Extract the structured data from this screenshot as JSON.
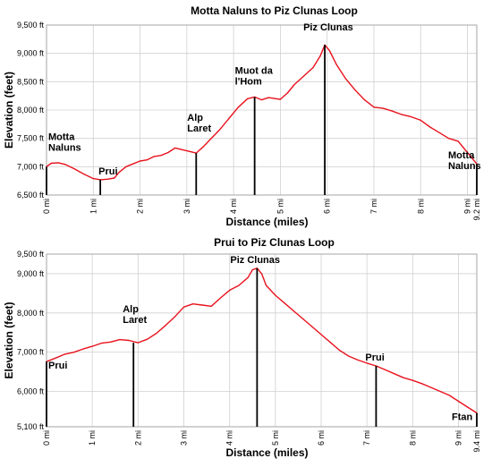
{
  "chart_data": [
    {
      "type": "line",
      "title": "Motta Naluns to Piz Clunas Loop",
      "xlabel": "Distance (miles)",
      "ylabel": "Elevation (feet)",
      "x_unit": "mi",
      "y_unit": "ft",
      "xlim": [
        0,
        9.2
      ],
      "ylim": [
        6500,
        9500
      ],
      "x_ticks": [
        0,
        1,
        2,
        3,
        4,
        5,
        6,
        7,
        8,
        9,
        9.2
      ],
      "y_ticks": [
        6500,
        7000,
        7500,
        8000,
        8500,
        9000,
        9500
      ],
      "grid": true,
      "line_color": "#e8121d",
      "series": [
        {
          "x": [
            0,
            0.1,
            0.25,
            0.4,
            0.6,
            0.8,
            1.0,
            1.15,
            1.3,
            1.45,
            1.55,
            1.7,
            1.85,
            2.0,
            2.15,
            2.3,
            2.45,
            2.6,
            2.75,
            2.9,
            3.05,
            3.2,
            3.35,
            3.5,
            3.7,
            3.9,
            4.1,
            4.3,
            4.45,
            4.6,
            4.75,
            4.9,
            5.0,
            5.15,
            5.3,
            5.5,
            5.7,
            5.85,
            5.95,
            6.05,
            6.2,
            6.4,
            6.6,
            6.8,
            7.0,
            7.2,
            7.4,
            7.6,
            7.8,
            8.0,
            8.2,
            8.4,
            8.6,
            8.8,
            9.0,
            9.2
          ],
          "y": [
            7000,
            7060,
            7070,
            7040,
            6960,
            6870,
            6790,
            6770,
            6780,
            6800,
            6900,
            7000,
            7050,
            7100,
            7120,
            7180,
            7200,
            7250,
            7330,
            7300,
            7270,
            7240,
            7350,
            7480,
            7650,
            7850,
            8050,
            8200,
            8230,
            8180,
            8220,
            8200,
            8190,
            8300,
            8450,
            8600,
            8750,
            8950,
            9150,
            9050,
            8800,
            8550,
            8350,
            8180,
            8050,
            8030,
            7980,
            7920,
            7880,
            7820,
            7700,
            7600,
            7500,
            7450,
            7250,
            7050
          ]
        }
      ],
      "waypoints": [
        {
          "x": 0,
          "y": 7000,
          "label": [
            "Motta",
            "Naluns"
          ]
        },
        {
          "x": 1.15,
          "y": 6770,
          "label": [
            "Prui"
          ]
        },
        {
          "x": 3.2,
          "y": 7240,
          "label": [
            "Alp",
            "Laret"
          ]
        },
        {
          "x": 4.45,
          "y": 8230,
          "label": [
            "Muot da",
            "l'Hom"
          ]
        },
        {
          "x": 5.95,
          "y": 9150,
          "label": [
            "Piz Clunas"
          ]
        },
        {
          "x": 9.2,
          "y": 7050,
          "label": [
            "Motta",
            "Naluns"
          ]
        }
      ]
    },
    {
      "type": "line",
      "title": "Prui to Piz Clunas Loop",
      "xlabel": "Distance (miles)",
      "ylabel": "Elevation (feet)",
      "x_unit": "mi",
      "y_unit": "ft",
      "xlim": [
        0,
        9.4
      ],
      "ylim": [
        5100,
        9500
      ],
      "x_ticks": [
        0,
        1,
        2,
        3,
        4,
        5,
        6,
        7,
        8,
        9,
        9.4
      ],
      "y_ticks": [
        5100,
        6000,
        7000,
        8000,
        9000,
        9500
      ],
      "grid": true,
      "line_color": "#e8121d",
      "series": [
        {
          "x": [
            0,
            0.2,
            0.4,
            0.6,
            0.8,
            1.0,
            1.2,
            1.4,
            1.6,
            1.8,
            2.0,
            2.2,
            2.4,
            2.6,
            2.8,
            3.0,
            3.2,
            3.4,
            3.6,
            3.8,
            4.0,
            4.2,
            4.4,
            4.5,
            4.6,
            4.7,
            4.8,
            5.0,
            5.2,
            5.4,
            5.6,
            5.8,
            6.0,
            6.2,
            6.4,
            6.6,
            6.8,
            7.0,
            7.2,
            7.4,
            7.6,
            7.8,
            8.0,
            8.2,
            8.4,
            8.6,
            8.8,
            9.0,
            9.2,
            9.4
          ],
          "y": [
            6760,
            6850,
            6950,
            7000,
            7080,
            7150,
            7230,
            7260,
            7320,
            7300,
            7240,
            7330,
            7480,
            7680,
            7900,
            8150,
            8230,
            8200,
            8170,
            8380,
            8580,
            8700,
            8900,
            9100,
            9140,
            9000,
            8700,
            8450,
            8250,
            8050,
            7850,
            7650,
            7450,
            7250,
            7050,
            6900,
            6800,
            6720,
            6650,
            6550,
            6450,
            6350,
            6280,
            6200,
            6100,
            6000,
            5900,
            5750,
            5600,
            5450
          ]
        }
      ],
      "waypoints": [
        {
          "x": 0,
          "y": 6760,
          "label": [
            "Prui"
          ]
        },
        {
          "x": 1.9,
          "y": 7240,
          "label": [
            "Alp",
            "Laret"
          ]
        },
        {
          "x": 4.6,
          "y": 9140,
          "label": [
            "Piz Clunas"
          ]
        },
        {
          "x": 7.2,
          "y": 6650,
          "label": [
            "Prui"
          ]
        },
        {
          "x": 9.4,
          "y": 5450,
          "label": [
            "Ftan"
          ]
        }
      ]
    }
  ]
}
